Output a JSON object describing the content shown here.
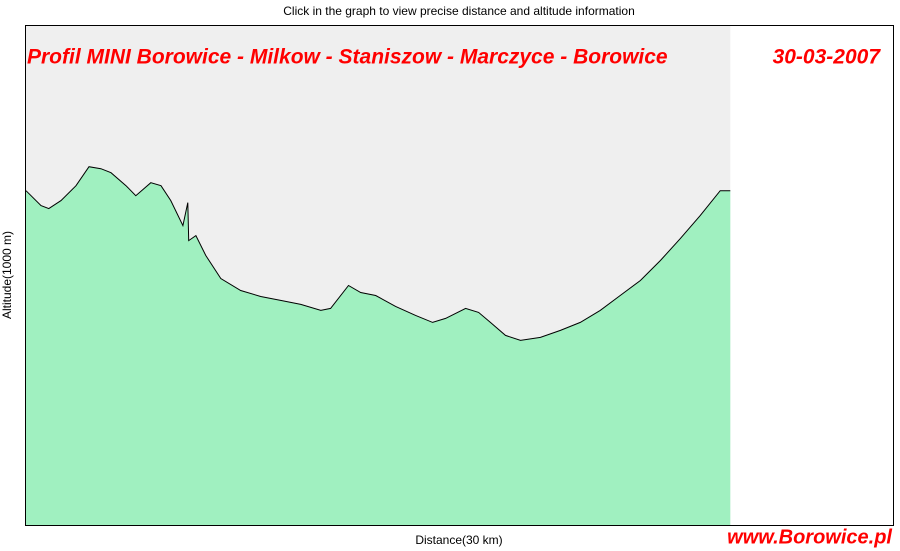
{
  "header": "Click in the graph to view precise distance and altitude information",
  "chart_data": {
    "type": "area",
    "title": "Profil MINI Borowice - Milkow - Staniszow - Marczyce - Borowice",
    "subtitle": "30-03-2007",
    "x_label": "Distance(30 km)",
    "y_label": "Altitude(1000 m)",
    "watermark": "www.Borowice.pl",
    "xlim": [
      0,
      30
    ],
    "ylim": [
      0,
      1000
    ],
    "color": "#a0f0c0",
    "line_color": "#000000",
    "background": "#efefef",
    "x": [
      0,
      0.52,
      0.79,
      1.21,
      1.73,
      2.18,
      2.59,
      2.94,
      3.46,
      3.8,
      4.32,
      4.67,
      5.01,
      5.43,
      5.6,
      5.63,
      5.88,
      6.22,
      6.74,
      7.43,
      8.12,
      8.81,
      9.51,
      10.2,
      10.54,
      11.16,
      11.58,
      12.1,
      12.79,
      13.48,
      14.07,
      14.52,
      15.21,
      15.66,
      16.07,
      16.59,
      17.11,
      17.8,
      18.49,
      19.18,
      19.87,
      20.56,
      21.26,
      21.95,
      22.64,
      23.33,
      24.02,
      24.37
    ],
    "values": [
      670,
      640,
      634,
      650,
      680,
      718,
      714,
      706,
      680,
      660,
      686,
      680,
      650,
      600,
      646,
      570,
      580,
      540,
      494,
      470,
      458,
      450,
      442,
      430,
      434,
      480,
      466,
      460,
      438,
      420,
      406,
      414,
      434,
      426,
      406,
      380,
      370,
      376,
      390,
      406,
      430,
      460,
      490,
      530,
      574,
      620,
      670,
      670
    ]
  }
}
